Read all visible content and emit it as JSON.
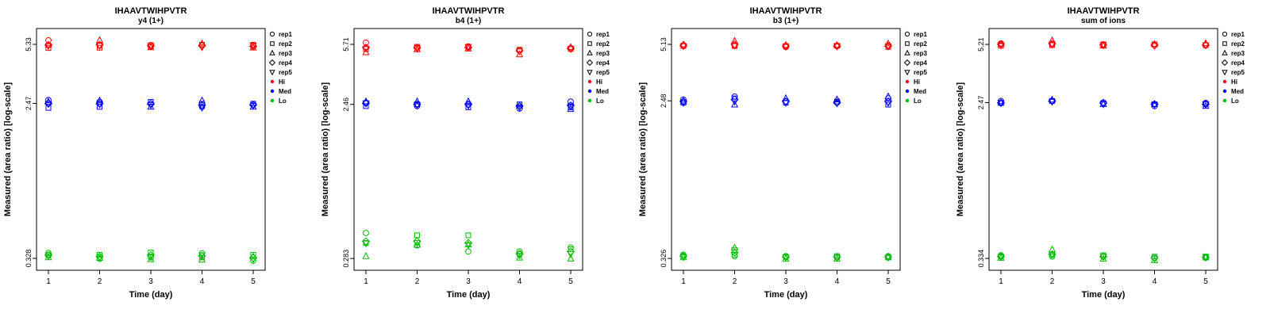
{
  "figure": {
    "peptide": "IHAAVTWIHPVTR",
    "background": "#ffffff"
  },
  "legend": {
    "replicates": [
      {
        "label": "rep1",
        "symbol": "circle"
      },
      {
        "label": "rep2",
        "symbol": "square"
      },
      {
        "label": "rep3",
        "symbol": "triangle-up"
      },
      {
        "label": "rep4",
        "symbol": "diamond"
      },
      {
        "label": "rep5",
        "symbol": "triangle-down"
      }
    ],
    "levels": [
      {
        "label": "Hi",
        "color": "#FF0000"
      },
      {
        "label": "Med",
        "color": "#0000FF"
      },
      {
        "label": "Lo",
        "color": "#00BB00"
      }
    ]
  },
  "chart_data": [
    {
      "type": "scatter",
      "title": "IHAAVTWIHPVTR",
      "subtitle": "y4 (1+)",
      "xlabel": "Time (day)",
      "ylabel": "Measured (area ratio) [log-scale]",
      "x_ticks": [
        1,
        2,
        3,
        4,
        5
      ],
      "y_ticks": [
        5.33,
        2.47,
        0.328
      ],
      "ylim": [
        0.281,
        6.55
      ],
      "yscale": "log10",
      "series": [
        {
          "name": "Hi",
          "color": "#FF0000",
          "values_by_day": [
            [
              5.62,
              5.08,
              5.3,
              5.28,
              5.22
            ],
            [
              5.25,
              5.1,
              5.62,
              5.3,
              5.24
            ],
            [
              5.18,
              5.28,
              5.12,
              5.24,
              5.2
            ],
            [
              5.24,
              5.3,
              5.38,
              5.24,
              5.14
            ],
            [
              5.18,
              5.3,
              5.1,
              5.2,
              5.24
            ]
          ]
        },
        {
          "name": "Med",
          "color": "#0000FF",
          "values_by_day": [
            [
              2.58,
              2.33,
              2.52,
              2.47,
              2.45
            ],
            [
              2.52,
              2.36,
              2.56,
              2.46,
              2.44
            ],
            [
              2.46,
              2.52,
              2.36,
              2.45,
              2.42
            ],
            [
              2.36,
              2.46,
              2.56,
              2.42,
              2.34
            ],
            [
              2.42,
              2.46,
              2.36,
              2.42,
              2.4
            ]
          ]
        },
        {
          "name": "Lo",
          "color": "#00BB00",
          "values_by_day": [
            [
              0.352,
              0.344,
              0.332,
              0.342,
              0.338
            ],
            [
              0.326,
              0.344,
              0.33,
              0.336,
              0.332
            ],
            [
              0.332,
              0.354,
              0.324,
              0.342,
              0.336
            ],
            [
              0.35,
              0.332,
              0.322,
              0.338,
              0.342
            ],
            [
              0.318,
              0.344,
              0.336,
              0.33,
              0.324
            ]
          ]
        }
      ]
    },
    {
      "type": "scatter",
      "title": "IHAAVTWIHPVTR",
      "subtitle": "b4 (1+)",
      "xlabel": "Time (day)",
      "ylabel": "Measured (area ratio) [log-scale]",
      "x_ticks": [
        1,
        2,
        3,
        4,
        5
      ],
      "y_ticks": [
        5.71,
        2.46,
        0.283
      ],
      "ylim": [
        0.24,
        7.13
      ],
      "yscale": "log10",
      "series": [
        {
          "name": "Hi",
          "color": "#FF0000",
          "values_by_day": [
            [
              5.85,
              5.35,
              5.1,
              5.45,
              5.4
            ],
            [
              5.45,
              5.52,
              5.32,
              5.44,
              5.4
            ],
            [
              5.55,
              5.5,
              5.38,
              5.46,
              5.52
            ],
            [
              5.22,
              5.3,
              4.95,
              5.22,
              5.18
            ],
            [
              5.42,
              5.35,
              5.48,
              5.4,
              5.36
            ]
          ]
        },
        {
          "name": "Med",
          "color": "#0000FF",
          "values_by_day": [
            [
              2.52,
              2.4,
              2.56,
              2.5,
              2.5
            ],
            [
              2.4,
              2.46,
              2.56,
              2.46,
              2.44
            ],
            [
              2.46,
              2.36,
              2.56,
              2.46,
              2.42
            ],
            [
              2.32,
              2.46,
              2.42,
              2.4,
              2.36
            ],
            [
              2.56,
              2.36,
              2.3,
              2.42,
              2.4
            ]
          ]
        },
        {
          "name": "Lo",
          "color": "#00BB00",
          "values_by_day": [
            [
              0.405,
              0.352,
              0.292,
              0.36,
              0.35
            ],
            [
              0.34,
              0.392,
              0.342,
              0.36,
              0.352
            ],
            [
              0.312,
              0.392,
              0.344,
              0.352,
              0.342
            ],
            [
              0.312,
              0.302,
              0.286,
              0.302,
              0.296
            ],
            [
              0.33,
              0.322,
              0.282,
              0.312,
              0.302
            ]
          ]
        }
      ]
    },
    {
      "type": "scatter",
      "title": "IHAAVTWIHPVTR",
      "subtitle": "b3 (1+)",
      "xlabel": "Time (day)",
      "ylabel": "Measured (area ratio) [log-scale]",
      "x_ticks": [
        1,
        2,
        3,
        4,
        5
      ],
      "y_ticks": [
        5.13,
        2.48,
        0.326
      ],
      "ylim": [
        0.28,
        6.29
      ],
      "yscale": "log10",
      "series": [
        {
          "name": "Hi",
          "color": "#FF0000",
          "values_by_day": [
            [
              5.08,
              5.02,
              5.12,
              5.06,
              5.02
            ],
            [
              5.06,
              5.02,
              5.35,
              5.12,
              5.06
            ],
            [
              4.96,
              5.02,
              5.08,
              5.02,
              4.98
            ],
            [
              5.02,
              5.04,
              5.08,
              5.02,
              5.0
            ],
            [
              5.06,
              4.96,
              5.18,
              5.02,
              5.0
            ]
          ]
        },
        {
          "name": "Med",
          "color": "#0000FF",
          "values_by_day": [
            [
              2.52,
              2.42,
              2.46,
              2.46,
              2.42
            ],
            [
              2.62,
              2.56,
              2.36,
              2.52,
              2.46
            ],
            [
              2.46,
              2.42,
              2.56,
              2.46,
              2.42
            ],
            [
              2.42,
              2.46,
              2.52,
              2.42,
              2.4
            ],
            [
              2.56,
              2.36,
              2.62,
              2.46,
              2.42
            ]
          ]
        },
        {
          "name": "Lo",
          "color": "#00BB00",
          "values_by_day": [
            [
              0.342,
              0.336,
              0.33,
              0.336,
              0.332
            ],
            [
              0.336,
              0.342,
              0.374,
              0.352,
              0.362
            ],
            [
              0.336,
              0.332,
              0.324,
              0.332,
              0.33
            ],
            [
              0.33,
              0.336,
              0.324,
              0.332,
              0.33
            ],
            [
              0.336,
              0.33,
              0.33,
              0.332,
              0.33
            ]
          ]
        }
      ]
    },
    {
      "type": "scatter",
      "title": "IHAAVTWIHPVTR",
      "subtitle": "sum of ions",
      "xlabel": "Time (day)",
      "ylabel": "Measured (area ratio) [log-scale]",
      "x_ticks": [
        1,
        2,
        3,
        4,
        5
      ],
      "y_ticks": [
        5.21,
        2.47,
        0.334
      ],
      "ylim": [
        0.287,
        6.39
      ],
      "yscale": "log10",
      "series": [
        {
          "name": "Hi",
          "color": "#FF0000",
          "values_by_day": [
            [
              5.28,
              5.12,
              5.22,
              5.22,
              5.16
            ],
            [
              5.22,
              5.16,
              5.48,
              5.26,
              5.22
            ],
            [
              5.16,
              5.22,
              5.12,
              5.18,
              5.16
            ],
            [
              5.16,
              5.22,
              5.22,
              5.16,
              5.12
            ],
            [
              5.16,
              5.16,
              5.28,
              5.16,
              5.16
            ]
          ]
        },
        {
          "name": "Med",
          "color": "#0000FF",
          "values_by_day": [
            [
              2.52,
              2.46,
              2.46,
              2.46,
              2.46
            ],
            [
              2.52,
              2.52,
              2.56,
              2.52,
              2.5
            ],
            [
              2.46,
              2.46,
              2.42,
              2.46,
              2.42
            ],
            [
              2.36,
              2.42,
              2.42,
              2.42,
              2.4
            ],
            [
              2.46,
              2.42,
              2.36,
              2.42,
              2.42
            ]
          ]
        },
        {
          "name": "Lo",
          "color": "#00BB00",
          "values_by_day": [
            [
              0.348,
              0.342,
              0.336,
              0.342,
              0.34
            ],
            [
              0.342,
              0.348,
              0.374,
              0.352,
              0.352
            ],
            [
              0.342,
              0.348,
              0.332,
              0.342,
              0.342
            ],
            [
              0.336,
              0.342,
              0.326,
              0.336,
              0.332
            ],
            [
              0.342,
              0.338,
              0.338,
              0.338,
              0.342
            ]
          ]
        }
      ]
    }
  ]
}
